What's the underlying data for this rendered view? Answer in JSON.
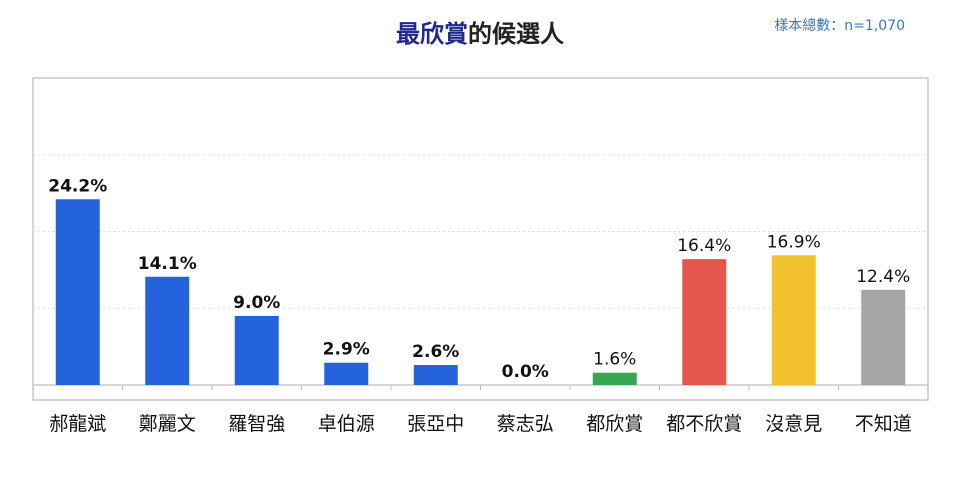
{
  "title": {
    "highlight": "最欣賞",
    "rest": "的候選人"
  },
  "sample_note": "樣本總數：n=1,070",
  "chart_data": {
    "type": "bar",
    "title": "最欣賞的候選人",
    "categories": [
      "郝龍斌",
      "鄭麗文",
      "羅智強",
      "卓伯源",
      "張亞中",
      "蔡志弘",
      "都欣賞",
      "都不欣賞",
      "沒意見",
      "不知道"
    ],
    "values": [
      24.2,
      14.1,
      9.0,
      2.9,
      2.6,
      0.0,
      1.6,
      16.4,
      16.9,
      12.4
    ],
    "value_labels": [
      "24.2%",
      "14.1%",
      "9.0%",
      "2.9%",
      "2.6%",
      "0.0%",
      "1.6%",
      "16.4%",
      "16.9%",
      "12.4%"
    ],
    "label_bold": [
      true,
      true,
      true,
      true,
      true,
      true,
      false,
      false,
      false,
      false
    ],
    "colors": [
      "#2563dd",
      "#2563dd",
      "#2563dd",
      "#2563dd",
      "#2563dd",
      "#2563dd",
      "#36a852",
      "#e5574b",
      "#f2c12e",
      "#a6a6a6"
    ],
    "unit": "%",
    "ylim": [
      0,
      40
    ],
    "gridlines": [
      10,
      20,
      30,
      40
    ],
    "grid": true,
    "legend": "none"
  }
}
